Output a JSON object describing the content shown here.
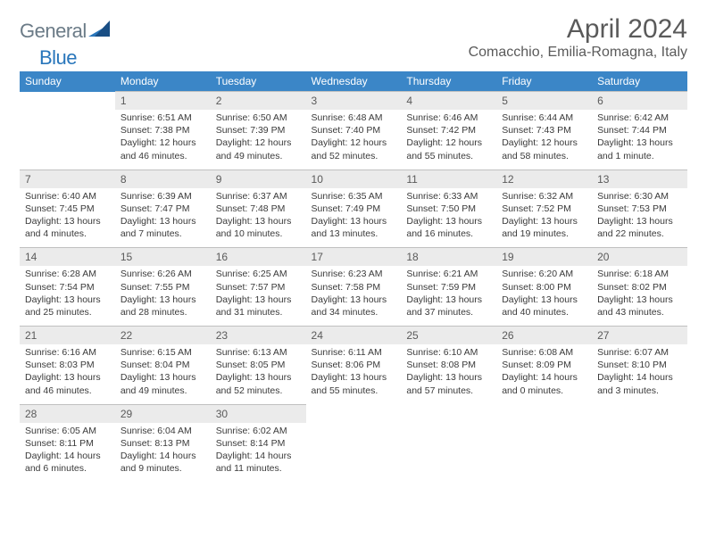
{
  "logo": {
    "part1": "General",
    "part2": "Blue"
  },
  "title": "April 2024",
  "location": "Comacchio, Emilia-Romagna, Italy",
  "colors": {
    "header_bg": "#3b86c7",
    "header_fg": "#ffffff",
    "daynum_bg": "#ebebeb",
    "text_muted": "#5a5a5a",
    "text_body": "#3a3a3a",
    "logo_gray": "#6b7b87",
    "logo_blue": "#2976bb"
  },
  "daysOfWeek": [
    "Sunday",
    "Monday",
    "Tuesday",
    "Wednesday",
    "Thursday",
    "Friday",
    "Saturday"
  ],
  "weeks": [
    [
      {
        "n": "",
        "lines": []
      },
      {
        "n": "1",
        "lines": [
          "Sunrise: 6:51 AM",
          "Sunset: 7:38 PM",
          "Daylight: 12 hours",
          "and 46 minutes."
        ]
      },
      {
        "n": "2",
        "lines": [
          "Sunrise: 6:50 AM",
          "Sunset: 7:39 PM",
          "Daylight: 12 hours",
          "and 49 minutes."
        ]
      },
      {
        "n": "3",
        "lines": [
          "Sunrise: 6:48 AM",
          "Sunset: 7:40 PM",
          "Daylight: 12 hours",
          "and 52 minutes."
        ]
      },
      {
        "n": "4",
        "lines": [
          "Sunrise: 6:46 AM",
          "Sunset: 7:42 PM",
          "Daylight: 12 hours",
          "and 55 minutes."
        ]
      },
      {
        "n": "5",
        "lines": [
          "Sunrise: 6:44 AM",
          "Sunset: 7:43 PM",
          "Daylight: 12 hours",
          "and 58 minutes."
        ]
      },
      {
        "n": "6",
        "lines": [
          "Sunrise: 6:42 AM",
          "Sunset: 7:44 PM",
          "Daylight: 13 hours",
          "and 1 minute."
        ]
      }
    ],
    [
      {
        "n": "7",
        "lines": [
          "Sunrise: 6:40 AM",
          "Sunset: 7:45 PM",
          "Daylight: 13 hours",
          "and 4 minutes."
        ]
      },
      {
        "n": "8",
        "lines": [
          "Sunrise: 6:39 AM",
          "Sunset: 7:47 PM",
          "Daylight: 13 hours",
          "and 7 minutes."
        ]
      },
      {
        "n": "9",
        "lines": [
          "Sunrise: 6:37 AM",
          "Sunset: 7:48 PM",
          "Daylight: 13 hours",
          "and 10 minutes."
        ]
      },
      {
        "n": "10",
        "lines": [
          "Sunrise: 6:35 AM",
          "Sunset: 7:49 PM",
          "Daylight: 13 hours",
          "and 13 minutes."
        ]
      },
      {
        "n": "11",
        "lines": [
          "Sunrise: 6:33 AM",
          "Sunset: 7:50 PM",
          "Daylight: 13 hours",
          "and 16 minutes."
        ]
      },
      {
        "n": "12",
        "lines": [
          "Sunrise: 6:32 AM",
          "Sunset: 7:52 PM",
          "Daylight: 13 hours",
          "and 19 minutes."
        ]
      },
      {
        "n": "13",
        "lines": [
          "Sunrise: 6:30 AM",
          "Sunset: 7:53 PM",
          "Daylight: 13 hours",
          "and 22 minutes."
        ]
      }
    ],
    [
      {
        "n": "14",
        "lines": [
          "Sunrise: 6:28 AM",
          "Sunset: 7:54 PM",
          "Daylight: 13 hours",
          "and 25 minutes."
        ]
      },
      {
        "n": "15",
        "lines": [
          "Sunrise: 6:26 AM",
          "Sunset: 7:55 PM",
          "Daylight: 13 hours",
          "and 28 minutes."
        ]
      },
      {
        "n": "16",
        "lines": [
          "Sunrise: 6:25 AM",
          "Sunset: 7:57 PM",
          "Daylight: 13 hours",
          "and 31 minutes."
        ]
      },
      {
        "n": "17",
        "lines": [
          "Sunrise: 6:23 AM",
          "Sunset: 7:58 PM",
          "Daylight: 13 hours",
          "and 34 minutes."
        ]
      },
      {
        "n": "18",
        "lines": [
          "Sunrise: 6:21 AM",
          "Sunset: 7:59 PM",
          "Daylight: 13 hours",
          "and 37 minutes."
        ]
      },
      {
        "n": "19",
        "lines": [
          "Sunrise: 6:20 AM",
          "Sunset: 8:00 PM",
          "Daylight: 13 hours",
          "and 40 minutes."
        ]
      },
      {
        "n": "20",
        "lines": [
          "Sunrise: 6:18 AM",
          "Sunset: 8:02 PM",
          "Daylight: 13 hours",
          "and 43 minutes."
        ]
      }
    ],
    [
      {
        "n": "21",
        "lines": [
          "Sunrise: 6:16 AM",
          "Sunset: 8:03 PM",
          "Daylight: 13 hours",
          "and 46 minutes."
        ]
      },
      {
        "n": "22",
        "lines": [
          "Sunrise: 6:15 AM",
          "Sunset: 8:04 PM",
          "Daylight: 13 hours",
          "and 49 minutes."
        ]
      },
      {
        "n": "23",
        "lines": [
          "Sunrise: 6:13 AM",
          "Sunset: 8:05 PM",
          "Daylight: 13 hours",
          "and 52 minutes."
        ]
      },
      {
        "n": "24",
        "lines": [
          "Sunrise: 6:11 AM",
          "Sunset: 8:06 PM",
          "Daylight: 13 hours",
          "and 55 minutes."
        ]
      },
      {
        "n": "25",
        "lines": [
          "Sunrise: 6:10 AM",
          "Sunset: 8:08 PM",
          "Daylight: 13 hours",
          "and 57 minutes."
        ]
      },
      {
        "n": "26",
        "lines": [
          "Sunrise: 6:08 AM",
          "Sunset: 8:09 PM",
          "Daylight: 14 hours",
          "and 0 minutes."
        ]
      },
      {
        "n": "27",
        "lines": [
          "Sunrise: 6:07 AM",
          "Sunset: 8:10 PM",
          "Daylight: 14 hours",
          "and 3 minutes."
        ]
      }
    ],
    [
      {
        "n": "28",
        "lines": [
          "Sunrise: 6:05 AM",
          "Sunset: 8:11 PM",
          "Daylight: 14 hours",
          "and 6 minutes."
        ]
      },
      {
        "n": "29",
        "lines": [
          "Sunrise: 6:04 AM",
          "Sunset: 8:13 PM",
          "Daylight: 14 hours",
          "and 9 minutes."
        ]
      },
      {
        "n": "30",
        "lines": [
          "Sunrise: 6:02 AM",
          "Sunset: 8:14 PM",
          "Daylight: 14 hours",
          "and 11 minutes."
        ]
      },
      {
        "n": "",
        "lines": []
      },
      {
        "n": "",
        "lines": []
      },
      {
        "n": "",
        "lines": []
      },
      {
        "n": "",
        "lines": []
      }
    ]
  ]
}
